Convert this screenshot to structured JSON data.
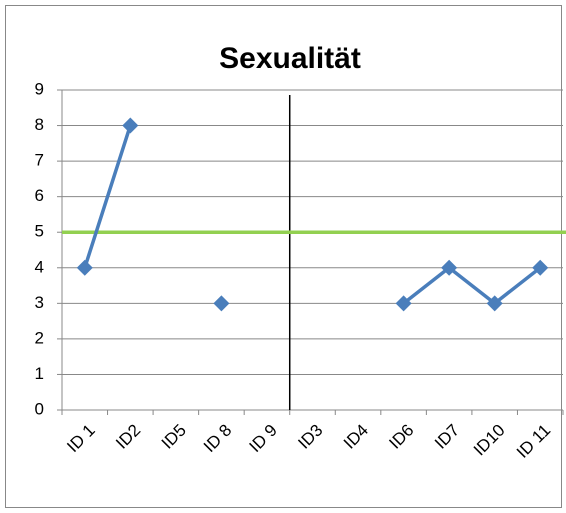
{
  "chart_data": {
    "type": "line",
    "title": "Sexualität",
    "categories": [
      "ID 1",
      "ID2",
      "ID5",
      "ID 8",
      "ID 9",
      "ID3",
      "ID4",
      "ID6",
      "ID7",
      "ID10",
      "ID 11"
    ],
    "series": [
      {
        "color": "#4a7ebb",
        "values": [
          4,
          8,
          null,
          3,
          null,
          null,
          null,
          3,
          4,
          3,
          4
        ]
      }
    ],
    "reference_line": {
      "value": 5,
      "color": "#92d050"
    },
    "ylim": [
      0,
      9
    ],
    "yticks": [
      0,
      1,
      2,
      3,
      4,
      5,
      6,
      7,
      8,
      9
    ],
    "grid": true
  }
}
